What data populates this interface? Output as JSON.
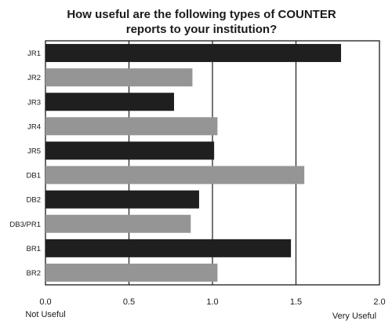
{
  "chart_data": {
    "type": "bar",
    "orientation": "horizontal",
    "title_lines": [
      "How useful are the following types of COUNTER",
      "reports to your institution?"
    ],
    "categories": [
      "JR1",
      "JR2",
      "JR3",
      "JR4",
      "JR5",
      "DB1",
      "DB2",
      "DB3/PR1",
      "BR1",
      "BR2"
    ],
    "values": [
      1.77,
      0.88,
      0.77,
      1.03,
      1.01,
      1.55,
      0.92,
      0.87,
      1.47,
      1.03
    ],
    "bar_colors": [
      "#1f1f1f",
      "#959595",
      "#1f1f1f",
      "#959595",
      "#1f1f1f",
      "#959595",
      "#1f1f1f",
      "#959595",
      "#1f1f1f",
      "#959595"
    ],
    "xlim": [
      0,
      2.0
    ],
    "x_ticks": [
      "0.0",
      "0.5",
      "1.0",
      "1.5",
      "2.0"
    ],
    "x_tick_values": [
      0,
      0.5,
      1.0,
      1.5,
      2.0
    ],
    "x_end_labels": {
      "low": "Not Useful",
      "high": "Very Useful"
    },
    "grid": "vertical",
    "legend": "none"
  }
}
